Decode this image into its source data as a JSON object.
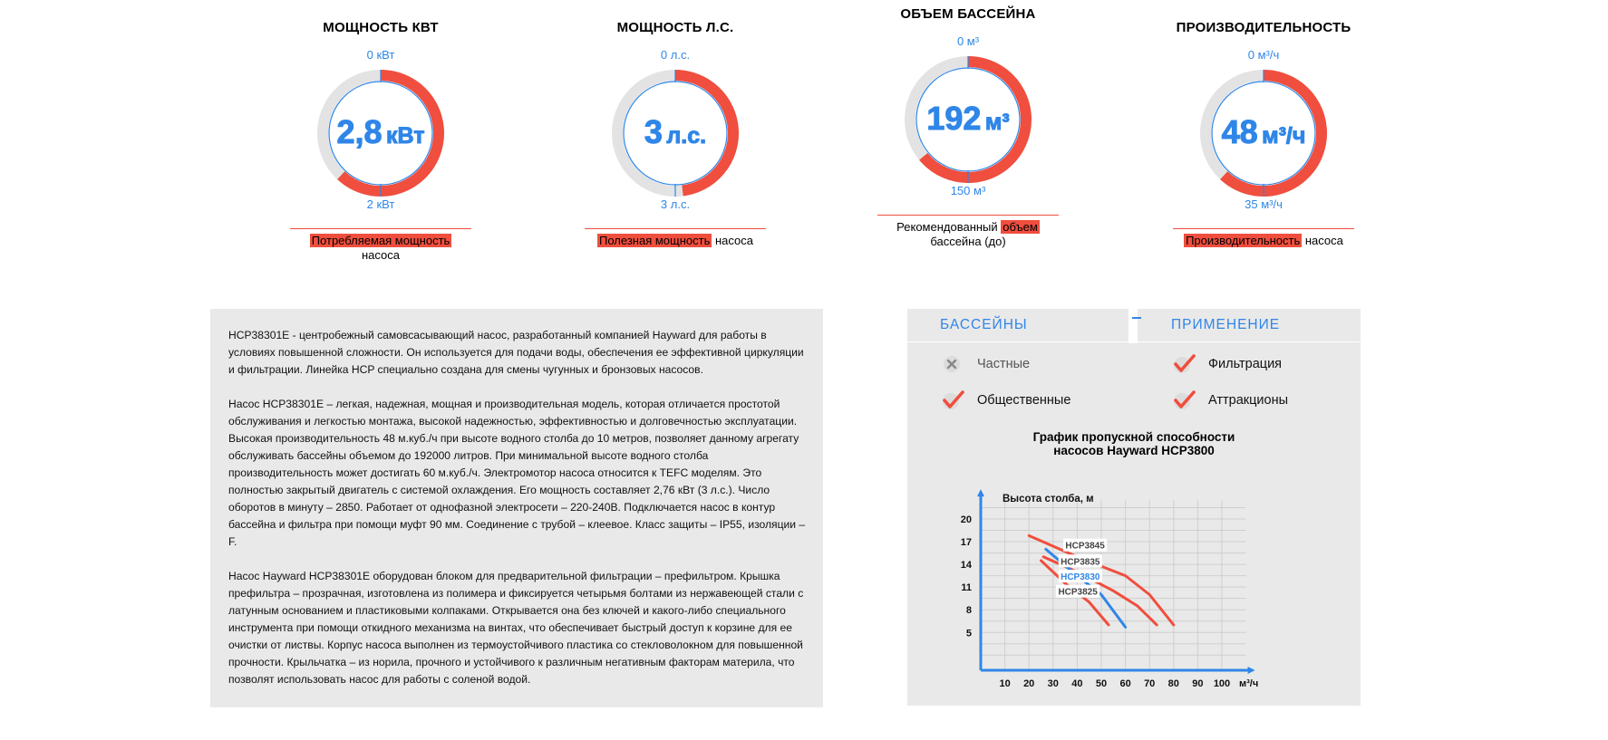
{
  "gauges": [
    {
      "title": "МОЩНОСТЬ КВТ",
      "top": "0 кВт",
      "bottom": "2 кВт",
      "value_num": "2,8",
      "value_unit": "кВт",
      "fill": 0.62,
      "desc_hl": "Потребляемая мощность",
      "desc_rest": " насоса"
    },
    {
      "title": "МОЩНОСТЬ Л.С.",
      "top": "0 л.с.",
      "bottom": "3 л.с.",
      "value_num": "3",
      "value_unit": "л.с.",
      "fill": 0.48,
      "desc_hl": "Полезная мощность",
      "desc_rest": " насоса"
    },
    {
      "title": "ОБЪЕМ БАССЕЙНА",
      "top": "0 м³",
      "bottom": "150 м³",
      "value_num": "192",
      "value_unit": "м³",
      "fill": 0.64,
      "desc_pre": "Рекомендованный ",
      "desc_hl": "объем",
      "desc_line2": "бассейна (до)"
    },
    {
      "title": "ПРОИЗВОДИТЕЛЬНОСТЬ",
      "top": "0 м³/ч",
      "bottom": "35 м³/ч",
      "value_num": "48",
      "value_unit": "м³/ч",
      "fill": 0.62,
      "desc_hl": "Производительность",
      "desc_rest": " насоса"
    }
  ],
  "description": [
    "HCP38301E - центробежный самовсасывающий насос, разработанный компанией Hayward для работы в условиях повышенной сложности. Он используется для подачи воды, обеспечения ее эффективной циркуляции и фильтрации. Линейка HCP специально создана для смены чугунных и бронзовых насосов.",
    "Насос HCP38301E – легкая, надежная, мощная и производительная модель, которая отличается простотой обслуживания и легкостью монтажа, высокой надежностью, эффективностью и долговечностью эксплуатации. Высокая производительность 48 м.куб./ч при высоте водного столба до 10 метров, позволяет данному агрегату обслуживать бассейны объемом до 192000 литров. При минимальной высоте водного столба производительность может достигать 60 м.куб./ч. Электромотор насоса относится к TEFC моделям. Это полностью закрытый двигатель с системой охлаждения. Его мощность составляет 2,76 кВт (3 л.с.). Число оборотов в минуту – 2850. Работает от однофазной электросети – 220-240В. Подключается насос в контур бассейна и фильтра при помощи муфт 90 мм. Соединение с трубой – клеевое. Класс защиты – IP55, изоляции – F.",
    "Насос Hayward HCP38301E оборудован блоком для предварительной фильтрации – префильтром. Крышка префильтра – прозрачная, изготовлена из полимера и фиксируется четырьмя болтами из нержавеющей стали с латунным основанием и пластиковыми колпаками. Открывается она без ключей и какого-либо специального инструмента при помощи откидного механизма на винтах, что обеспечивает быстрый доступ к корзине для ее очистки от листвы. Корпус насоса выполнен из термоустойчивого пластика со стекловолокном для повышенной прочности. Крыльчатка – из норила, прочного и устойчивого к различным негативным факторам материла, что позволят использовать насос для работы с соленой водой."
  ],
  "tabs": {
    "pools": "БАССЕЙНЫ",
    "application": "ПРИМЕНЕНИЕ"
  },
  "options": {
    "private": {
      "label": "Частные",
      "checked": false
    },
    "public": {
      "label": "Общественные",
      "checked": true
    },
    "filtration": {
      "label": "Фильтрация",
      "checked": true
    },
    "attractions": {
      "label": "Аттракционы",
      "checked": true
    }
  },
  "colors": {
    "accent": "#2f86e8",
    "red": "#f04e3e",
    "panel": "#e9e9e9"
  },
  "chart_data": {
    "type": "line",
    "title": "График пропускной способности насосов Hayward HCP3800",
    "ylabel": "Высота столба, м",
    "xlabel": "м³/ч",
    "x_ticks": [
      10,
      20,
      30,
      40,
      50,
      60,
      70,
      80,
      90,
      100
    ],
    "y_ticks": [
      5,
      8,
      11,
      14,
      17,
      20
    ],
    "xlim": [
      0,
      110
    ],
    "ylim": [
      0,
      22.5
    ],
    "grid": true,
    "series": [
      {
        "name": "HCP3845",
        "color": "#f04e3e",
        "x": [
          20,
          40,
          60,
          70,
          80
        ],
        "y": [
          17.8,
          15,
          12.5,
          10,
          6
        ]
      },
      {
        "name": "HCP3835",
        "color": "#f04e3e",
        "x": [
          26,
          40,
          55,
          65,
          73
        ],
        "y": [
          15,
          13,
          10.5,
          8.5,
          6
        ]
      },
      {
        "name": "HCP3830",
        "color": "#2f86e8",
        "x": [
          27,
          40,
          50,
          60
        ],
        "y": [
          16,
          12.5,
          10,
          5.7
        ]
      },
      {
        "name": "HCP3825",
        "color": "#f04e3e",
        "x": [
          25,
          35,
          45,
          53
        ],
        "y": [
          14.5,
          11.5,
          9,
          6
        ]
      }
    ]
  }
}
